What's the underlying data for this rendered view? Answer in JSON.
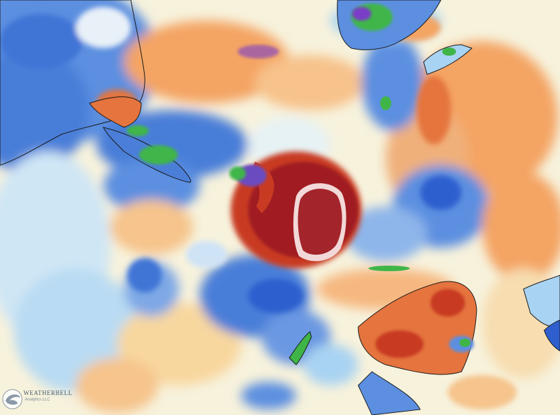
{
  "map": {
    "projection": "south-polar-stereographic",
    "field": "temperature anomaly (shaded)",
    "palette": {
      "deep_blue": "#2f5fcf",
      "blue": "#5c8fe0",
      "light_blue": "#a9d3f2",
      "pale": "#eef6f6",
      "cream": "#fbf0c6",
      "orange": "#f4a464",
      "dark_orange": "#e5743e",
      "red": "#c83a22",
      "maroon": "#a01e22",
      "green": "#3fb548",
      "purple": "#7a3cc8",
      "land_outline": "#1a1a1a"
    }
  },
  "watermark": {
    "brand": "WEATHERBELL",
    "tagline": "Analytics LLC"
  }
}
